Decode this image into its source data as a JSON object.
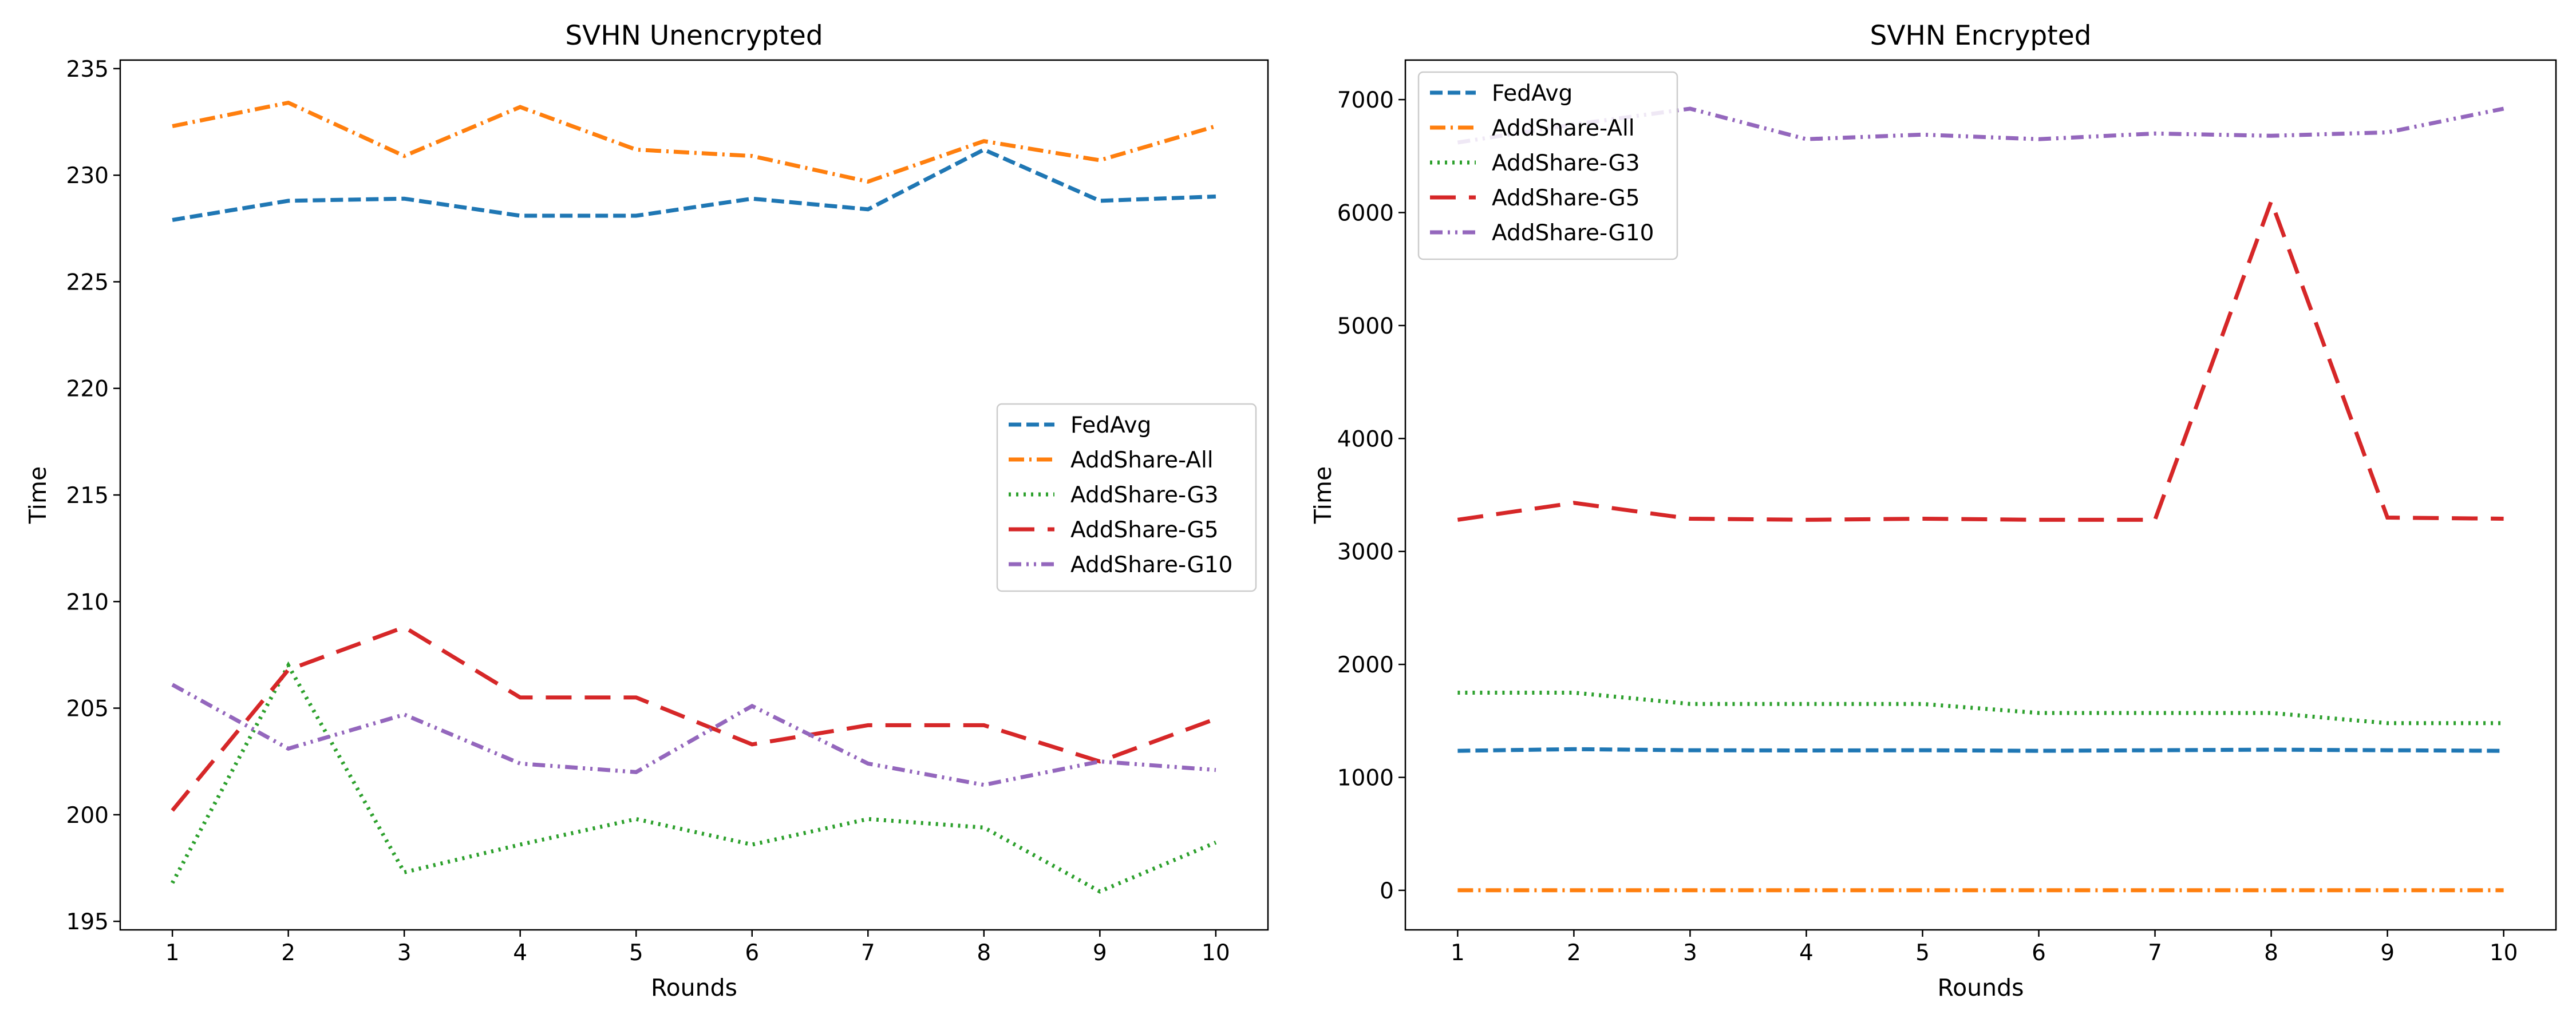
{
  "colors": {
    "fedavg": "#1f77b4",
    "addshare_all": "#ff7f0e",
    "addshare_g3": "#2ca02c",
    "addshare_g5": "#d62728",
    "addshare_g10": "#9467bd"
  },
  "chart_data": [
    {
      "type": "line",
      "title": "SVHN Unencrypted",
      "xlabel": "Rounds",
      "ylabel": "Time",
      "x": [
        1,
        2,
        3,
        4,
        5,
        6,
        7,
        8,
        9,
        10
      ],
      "xlim": [
        0.55,
        10.45
      ],
      "ylim": [
        194.6,
        235.4
      ],
      "yticks": [
        195,
        200,
        205,
        210,
        215,
        220,
        225,
        230,
        235
      ],
      "grid": false,
      "legend": "center-right",
      "series": [
        {
          "name": "FedAvg",
          "style": "dashed",
          "color": "#1f77b4",
          "values": [
            227.9,
            228.8,
            228.9,
            228.1,
            228.1,
            228.9,
            228.4,
            231.2,
            228.8,
            229.0
          ]
        },
        {
          "name": "AddShare-All",
          "style": "dashdot",
          "color": "#ff7f0e",
          "values": [
            232.3,
            233.4,
            230.9,
            233.2,
            231.2,
            230.9,
            229.7,
            231.6,
            230.7,
            232.3
          ]
        },
        {
          "name": "AddShare-G3",
          "style": "dotted",
          "color": "#2ca02c",
          "values": [
            196.8,
            207.0,
            197.3,
            198.6,
            199.8,
            198.6,
            199.8,
            199.4,
            196.4,
            198.7
          ]
        },
        {
          "name": "AddShare-G5",
          "style": "longdash",
          "color": "#d62728",
          "values": [
            200.2,
            206.8,
            208.8,
            205.5,
            205.5,
            203.3,
            204.2,
            204.2,
            202.5,
            204.5
          ]
        },
        {
          "name": "AddShare-G10",
          "style": "dashdotdot",
          "color": "#9467bd",
          "values": [
            206.1,
            203.1,
            204.7,
            202.4,
            202.0,
            205.1,
            202.4,
            201.4,
            202.5,
            202.1
          ]
        }
      ]
    },
    {
      "type": "line",
      "title": "SVHN Encrypted",
      "xlabel": "Rounds",
      "ylabel": "Time",
      "x": [
        1,
        2,
        3,
        4,
        5,
        6,
        7,
        8,
        9,
        10
      ],
      "xlim": [
        0.55,
        10.45
      ],
      "ylim": [
        -350,
        7350
      ],
      "yticks": [
        0,
        1000,
        2000,
        3000,
        4000,
        5000,
        6000,
        7000
      ],
      "grid": false,
      "legend": "top-left",
      "series": [
        {
          "name": "FedAvg",
          "style": "dashed",
          "color": "#1f77b4",
          "values": [
            1235,
            1250,
            1240,
            1238,
            1240,
            1235,
            1240,
            1245,
            1240,
            1235
          ]
        },
        {
          "name": "AddShare-All",
          "style": "dashdot",
          "color": "#ff7f0e",
          "values": [
            1,
            1,
            1,
            1,
            1,
            1,
            1,
            1,
            1,
            1
          ]
        },
        {
          "name": "AddShare-G3",
          "style": "dotted",
          "color": "#2ca02c",
          "values": [
            1750,
            1750,
            1650,
            1650,
            1650,
            1570,
            1570,
            1570,
            1480,
            1480
          ]
        },
        {
          "name": "AddShare-G5",
          "style": "longdash",
          "color": "#d62728",
          "values": [
            3280,
            3430,
            3290,
            3280,
            3290,
            3280,
            3280,
            6100,
            3300,
            3290
          ]
        },
        {
          "name": "AddShare-G10",
          "style": "dashdotdot",
          "color": "#9467bd",
          "values": [
            6620,
            6780,
            6920,
            6650,
            6690,
            6650,
            6700,
            6680,
            6710,
            6920
          ]
        }
      ]
    }
  ]
}
